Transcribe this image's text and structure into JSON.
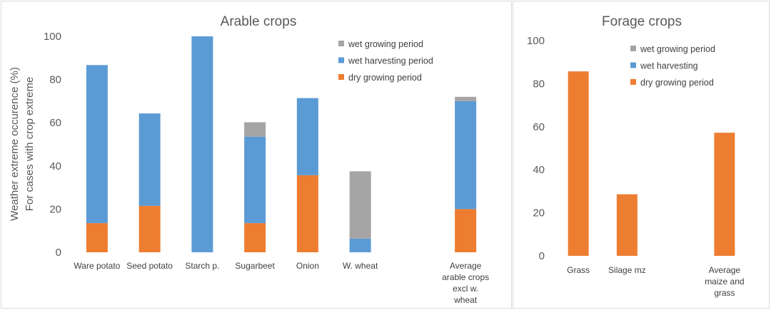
{
  "chart_data": [
    {
      "type": "bar",
      "stacked": true,
      "title": "Arable crops",
      "ylabel_lines": [
        "Weather extreme occurence (%)",
        "For cases with crop extreme"
      ],
      "xlabel": "",
      "ylim": [
        0,
        100
      ],
      "yticks": [
        0,
        20,
        40,
        60,
        80,
        100
      ],
      "grid": false,
      "legend_position": "top-right",
      "categories": [
        [
          "Ware potato"
        ],
        [
          "Seed potato"
        ],
        [
          "Starch p."
        ],
        [
          "Sugarbeet"
        ],
        [
          "Onion"
        ],
        [
          "W. wheat"
        ],
        [
          "",
          ""
        ],
        [
          "Average",
          "arable crops",
          "excl w.",
          "wheat"
        ]
      ],
      "series": [
        {
          "name": "dry growing period",
          "color": "#ed7d31",
          "values": [
            13.5,
            21.5,
            0,
            13.5,
            35.7,
            0,
            0,
            20
          ]
        },
        {
          "name": "wet harvesting period",
          "color": "#5b9bd5",
          "values": [
            73.2,
            42.8,
            100,
            40,
            35.7,
            6.3,
            0,
            50
          ]
        },
        {
          "name": "wet growing period",
          "color": "#a5a5a5",
          "values": [
            0,
            0,
            0,
            6.7,
            0,
            31.2,
            0,
            2
          ]
        }
      ]
    },
    {
      "type": "bar",
      "stacked": true,
      "title": "Forage crops",
      "xlabel": "",
      "ylabel": "",
      "ylim": [
        0,
        100
      ],
      "yticks": [
        0,
        20,
        40,
        60,
        80,
        100
      ],
      "grid": false,
      "legend_position": "top-right",
      "categories": [
        [
          "Grass"
        ],
        [
          "Silage mz"
        ],
        [
          "",
          ""
        ],
        [
          "Average",
          "maize and",
          "grass"
        ]
      ],
      "series": [
        {
          "name": "dry growing period",
          "color": "#ed7d31",
          "values": [
            85.7,
            28.6,
            0,
            57.2
          ]
        },
        {
          "name": "wet harvesting",
          "color": "#5b9bd5",
          "values": [
            0,
            0,
            0,
            0
          ]
        },
        {
          "name": "wet growing period",
          "color": "#a5a5a5",
          "values": [
            0,
            0,
            0,
            0
          ]
        }
      ]
    }
  ]
}
